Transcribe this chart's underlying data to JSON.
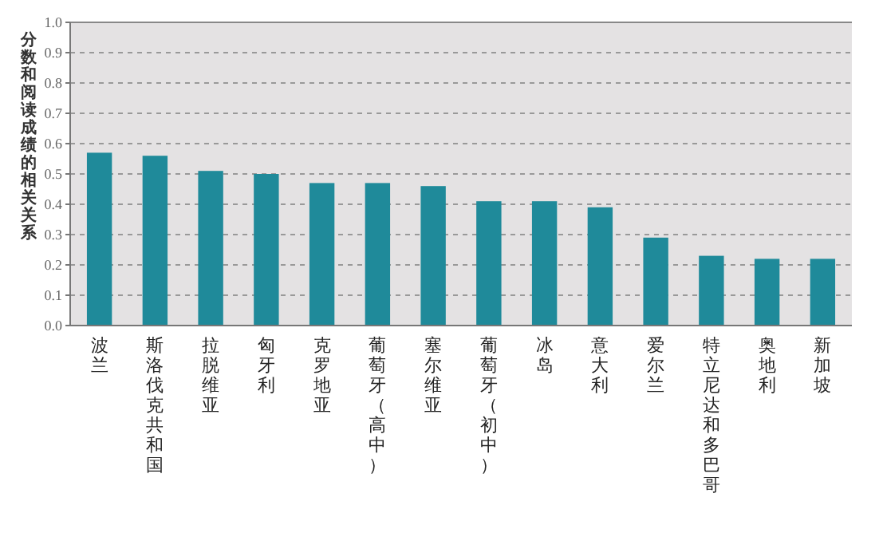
{
  "chart_data": {
    "type": "bar",
    "ylabel": "分数和阅读成绩的相关关系",
    "categories": [
      "波兰",
      "斯洛伐克共和国",
      "拉脱维亚",
      "匈牙利",
      "克罗地亚",
      "葡萄牙（高中）",
      "塞尔维亚",
      "葡萄牙（初中）",
      "冰岛",
      "意大利",
      "爱尔兰",
      "特立尼达和多巴哥",
      "奥地利",
      "新加坡"
    ],
    "values": [
      0.57,
      0.56,
      0.51,
      0.5,
      0.47,
      0.47,
      0.46,
      0.41,
      0.41,
      0.39,
      0.29,
      0.23,
      0.22,
      0.22
    ],
    "color": "#1f8a9a",
    "ylim": [
      0,
      1
    ],
    "yticks": [
      {
        "value": 0,
        "label": "0.0"
      },
      {
        "value": 0.1,
        "label": "0.1"
      },
      {
        "value": 0.2,
        "label": "0.2"
      },
      {
        "value": 0.3,
        "label": "0.3"
      },
      {
        "value": 0.4,
        "label": "0.4"
      },
      {
        "value": 0.5,
        "label": "0.5"
      },
      {
        "value": 0.6,
        "label": "0.6"
      },
      {
        "value": 0.7,
        "label": "0.7"
      },
      {
        "value": 0.8,
        "label": "0.8"
      },
      {
        "value": 0.9,
        "label": "0.9"
      },
      {
        "value": 1,
        "label": "1.0"
      }
    ],
    "grid": "y"
  }
}
